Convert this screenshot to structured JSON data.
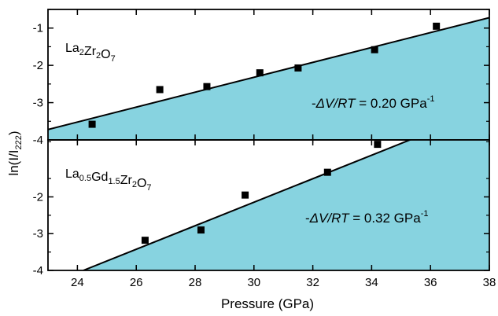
{
  "chart_data": [
    {
      "type": "scatter",
      "panel": "top",
      "label_main": "La",
      "label_parts": [
        {
          "t": "La",
          "sub": "2"
        },
        {
          "t": "Zr",
          "sub": "2"
        },
        {
          "t": "O",
          "sub": "7"
        }
      ],
      "annotation_prefix": "-ΔV/RT",
      "annotation_value": " = 0.20 GPa",
      "annotation_sup": "-1",
      "x": [
        24.5,
        26.8,
        28.4,
        30.2,
        31.5,
        34.1,
        36.2
      ],
      "y": [
        -3.58,
        -2.65,
        -2.57,
        -2.2,
        -2.07,
        -1.58,
        -0.95
      ],
      "fit_line": {
        "x": [
          23,
          38
        ],
        "y": [
          -3.72,
          -0.72
        ]
      },
      "fill_color": "#87d3e0",
      "xlim": [
        23,
        38
      ],
      "ylim": [
        -4,
        -0.5
      ],
      "yticks": [
        -1,
        -2,
        -3,
        -4
      ],
      "ytick_labels": [
        "-1",
        "-2",
        "-3",
        "-4"
      ]
    },
    {
      "type": "scatter",
      "panel": "bottom",
      "label_parts": [
        {
          "t": "La",
          "sub": "0.5"
        },
        {
          "t": "Gd",
          "sub": "1.5"
        },
        {
          "t": "Zr",
          "sub": "2"
        },
        {
          "t": "O",
          "sub": "7"
        }
      ],
      "annotation_prefix": "-ΔV/RT",
      "annotation_value": " = 0.32 GPa",
      "annotation_sup": "-1",
      "x": [
        26.3,
        28.2,
        29.7,
        32.5,
        34.2
      ],
      "y": [
        -3.18,
        -2.9,
        -1.95,
        -1.33,
        -0.57
      ],
      "fit_line": {
        "x": [
          24.2,
          35.3
        ],
        "y": [
          -4.0,
          -0.45
        ]
      },
      "fill_color": "#87d3e0",
      "xlim": [
        23,
        38
      ],
      "ylim": [
        -4,
        -0.45
      ],
      "yticks": [
        -2,
        -3,
        -4
      ],
      "ytick_labels": [
        "-2",
        "-3",
        "-4"
      ]
    }
  ],
  "xaxis": {
    "label": "Pressure (GPa)",
    "ticks": [
      24,
      26,
      28,
      30,
      32,
      34,
      36,
      38
    ],
    "tick_labels": [
      "24",
      "26",
      "28",
      "30",
      "32",
      "34",
      "36",
      "38"
    ]
  },
  "yaxis": {
    "label_main": "ln(I/I",
    "label_sub": "222",
    "label_end": ")"
  }
}
